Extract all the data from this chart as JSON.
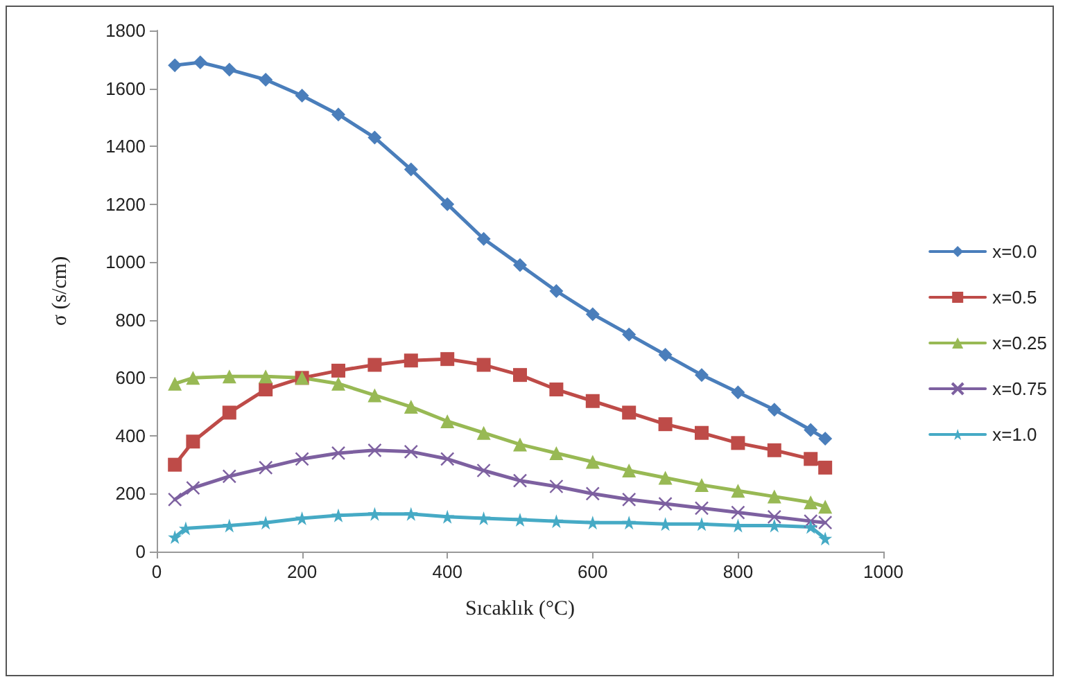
{
  "chart_data": {
    "type": "line",
    "xlabel": "Sıcaklık (°C)",
    "ylabel": "σ (s/cm)",
    "xlim": [
      0,
      1000
    ],
    "xticks": [
      0,
      200,
      400,
      600,
      800,
      1000
    ],
    "ylim": [
      0,
      1800
    ],
    "yticks": [
      0,
      200,
      400,
      600,
      800,
      1000,
      1200,
      1400,
      1600,
      1800
    ],
    "grid": false,
    "legend": "right",
    "series": [
      {
        "name": "x=0.0",
        "color": "#4a7ebb",
        "marker": "diamond",
        "x": [
          25,
          60,
          100,
          150,
          200,
          250,
          300,
          350,
          400,
          450,
          500,
          550,
          600,
          650,
          700,
          750,
          800,
          850,
          900,
          920
        ],
        "values": [
          1680,
          1690,
          1665,
          1630,
          1575,
          1510,
          1430,
          1320,
          1200,
          1080,
          990,
          900,
          820,
          750,
          680,
          610,
          550,
          490,
          420,
          390
        ]
      },
      {
        "name": "x=0.5",
        "color": "#be4b48",
        "marker": "square",
        "x": [
          25,
          50,
          100,
          150,
          200,
          250,
          300,
          350,
          400,
          450,
          500,
          550,
          600,
          650,
          700,
          750,
          800,
          850,
          900,
          920
        ],
        "values": [
          300,
          380,
          480,
          560,
          600,
          625,
          645,
          660,
          665,
          645,
          610,
          560,
          520,
          480,
          440,
          410,
          375,
          350,
          320,
          290
        ]
      },
      {
        "name": "x=0.25",
        "color": "#98b954",
        "marker": "triangle",
        "x": [
          25,
          50,
          100,
          150,
          200,
          250,
          300,
          350,
          400,
          450,
          500,
          550,
          600,
          650,
          700,
          750,
          800,
          850,
          900,
          920
        ],
        "values": [
          580,
          600,
          605,
          605,
          600,
          580,
          540,
          500,
          450,
          410,
          370,
          340,
          310,
          280,
          255,
          230,
          210,
          190,
          170,
          155
        ]
      },
      {
        "name": "x=0.75",
        "color": "#7d60a0",
        "marker": "cross",
        "x": [
          25,
          50,
          100,
          150,
          200,
          250,
          300,
          350,
          400,
          450,
          500,
          550,
          600,
          650,
          700,
          750,
          800,
          850,
          900,
          920
        ],
        "values": [
          180,
          220,
          260,
          290,
          320,
          340,
          350,
          345,
          320,
          280,
          245,
          225,
          200,
          180,
          165,
          150,
          135,
          120,
          105,
          100
        ]
      },
      {
        "name": "x=1.0",
        "color": "#46aac5",
        "marker": "star",
        "x": [
          25,
          40,
          100,
          150,
          200,
          250,
          300,
          350,
          400,
          450,
          500,
          550,
          600,
          650,
          700,
          750,
          800,
          850,
          900,
          920
        ],
        "values": [
          50,
          80,
          90,
          100,
          115,
          125,
          130,
          130,
          120,
          115,
          110,
          105,
          100,
          100,
          95,
          95,
          90,
          90,
          85,
          45
        ]
      }
    ]
  }
}
